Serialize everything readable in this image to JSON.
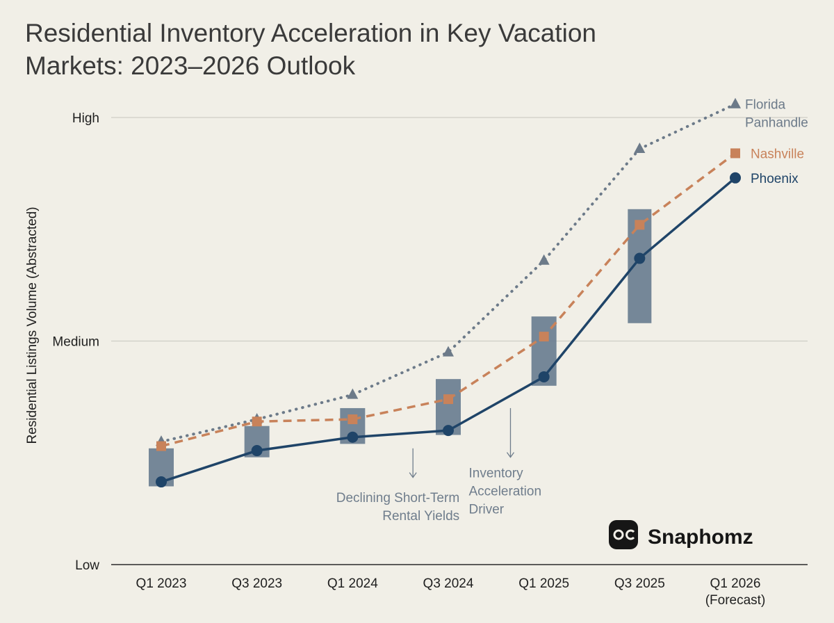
{
  "chart_data": {
    "type": "line",
    "title_lines": [
      "Residential Inventory Acceleration in Key Vacation",
      "Markets: 2023–2026 Outlook"
    ],
    "ylabel": "Residential Listings Volume (Abstracted)",
    "xlabel": "",
    "ylim": [
      0,
      100
    ],
    "y_ticks": [
      {
        "label": "Low",
        "value": 0
      },
      {
        "label": "Medium",
        "value": 50
      },
      {
        "label": "High",
        "value": 100
      }
    ],
    "categories": [
      "Q1 2023",
      "Q3 2023",
      "Q1 2024",
      "Q3 2024",
      "Q1 2025",
      "Q3 2025",
      "Q1 2026 (Forecast)"
    ],
    "category_lines": [
      [
        "Q1 2023"
      ],
      [
        "Q3 2023"
      ],
      [
        "Q1 2024"
      ],
      [
        "Q3 2024"
      ],
      [
        "Q1 2025"
      ],
      [
        "Q3 2025"
      ],
      [
        "Q1 2026",
        "(Forecast)"
      ]
    ],
    "series": [
      {
        "name_lines": [
          "Florida",
          "Panhandle"
        ],
        "marker": "triangle",
        "style": "dotted",
        "color": "#6c7a89",
        "label_color": "#6c7a89",
        "values": [
          27.5,
          32.5,
          38,
          47.5,
          68,
          93,
          103
        ]
      },
      {
        "name_lines": [
          "Nashville"
        ],
        "marker": "square",
        "style": "dashed",
        "color": "#c8825a",
        "label_color": "#c8825a",
        "values": [
          26.5,
          32,
          32.5,
          37,
          51,
          76,
          92
        ]
      },
      {
        "name_lines": [
          "Phoenix"
        ],
        "marker": "circle",
        "style": "solid",
        "color": "#1f4468",
        "label_color": "#1f4468",
        "values": [
          18.5,
          25.5,
          28.5,
          30,
          42,
          68.5,
          86.5
        ]
      }
    ],
    "range_bars": {
      "color": "#6a7e91",
      "ranges": [
        [
          17.5,
          26
        ],
        [
          24,
          31
        ],
        [
          27,
          35
        ],
        [
          29,
          41.5
        ],
        [
          40,
          55.5
        ],
        [
          54,
          79.5
        ],
        null
      ]
    },
    "annotations": [
      {
        "lines": [
          "Declining Short-Term",
          "Rental Yields"
        ],
        "category_index": 2.5,
        "arrow_from": 26,
        "arrow_to": 19.5,
        "text_value": 14
      },
      {
        "lines": [
          "Inventory",
          "Acceleration",
          "Driver"
        ],
        "category_index": 3.65,
        "arrow_from": 35,
        "arrow_to": 24,
        "text_value": 19.5
      }
    ],
    "grid": true,
    "legend": "right-end-labels"
  },
  "brand": {
    "name": "Snaphomz",
    "logo_icon": "owl-eyes-icon"
  }
}
